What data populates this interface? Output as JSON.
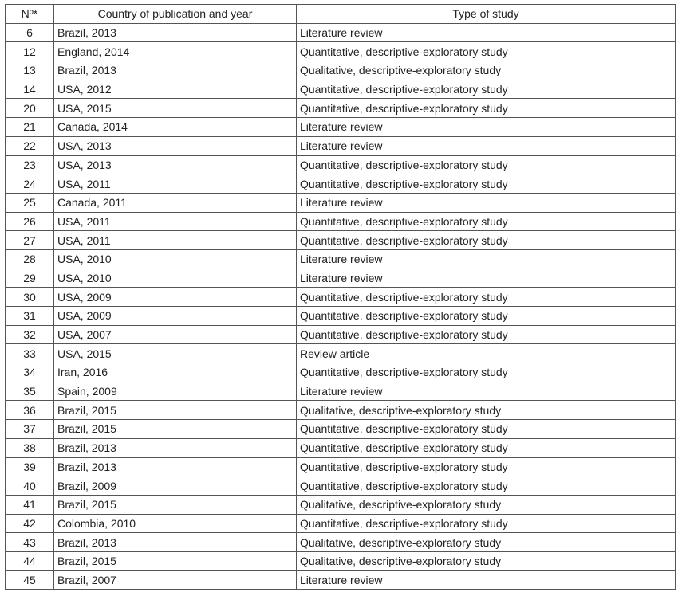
{
  "table": {
    "headers": [
      "Nº*",
      "Country of publication and year",
      "Type of study"
    ],
    "rows": [
      [
        "6",
        "Brazil, 2013",
        "Literature review"
      ],
      [
        "12",
        "England, 2014",
        "Quantitative, descriptive-exploratory study"
      ],
      [
        "13",
        "Brazil, 2013",
        "Qualitative, descriptive-exploratory study"
      ],
      [
        "14",
        "USA, 2012",
        "Quantitative, descriptive-exploratory study"
      ],
      [
        "20",
        "USA, 2015",
        "Quantitative, descriptive-exploratory study"
      ],
      [
        "21",
        "Canada, 2014",
        "Literature review"
      ],
      [
        "22",
        "USA, 2013",
        "Literature review"
      ],
      [
        "23",
        "USA, 2013",
        "Quantitative, descriptive-exploratory study"
      ],
      [
        "24",
        "USA, 2011",
        "Quantitative, descriptive-exploratory study"
      ],
      [
        "25",
        "Canada, 2011",
        "Literature review"
      ],
      [
        "26",
        "USA, 2011",
        "Quantitative, descriptive-exploratory study"
      ],
      [
        "27",
        "USA, 2011",
        "Quantitative, descriptive-exploratory study"
      ],
      [
        "28",
        "USA, 2010",
        "Literature review"
      ],
      [
        "29",
        "USA, 2010",
        "Literature review"
      ],
      [
        "30",
        "USA, 2009",
        "Quantitative, descriptive-exploratory study"
      ],
      [
        "31",
        "USA, 2009",
        "Quantitative, descriptive-exploratory study"
      ],
      [
        "32",
        "USA, 2007",
        "Quantitative, descriptive-exploratory study"
      ],
      [
        "33",
        "USA, 2015",
        "Review article"
      ],
      [
        "34",
        "Iran, 2016",
        "Quantitative, descriptive-exploratory study"
      ],
      [
        "35",
        "Spain, 2009",
        "Literature review"
      ],
      [
        "36",
        "Brazil, 2015",
        "Qualitative, descriptive-exploratory study"
      ],
      [
        "37",
        "Brazil, 2015",
        "Quantitative, descriptive-exploratory study"
      ],
      [
        "38",
        "Brazil, 2013",
        "Quantitative, descriptive-exploratory study"
      ],
      [
        "39",
        "Brazil, 2013",
        "Quantitative, descriptive-exploratory study"
      ],
      [
        "40",
        "Brazil, 2009",
        "Quantitative, descriptive-exploratory study"
      ],
      [
        "41",
        "Brazil, 2015",
        "Qualitative, descriptive-exploratory study"
      ],
      [
        "42",
        "Colombia, 2010",
        "Quantitative, descriptive-exploratory study"
      ],
      [
        "43",
        "Brazil, 2013",
        "Qualitative, descriptive-exploratory study"
      ],
      [
        "44",
        "Brazil, 2015",
        "Qualitative, descriptive-exploratory study"
      ],
      [
        "45",
        "Brazil, 2007",
        "Literature review"
      ]
    ]
  }
}
